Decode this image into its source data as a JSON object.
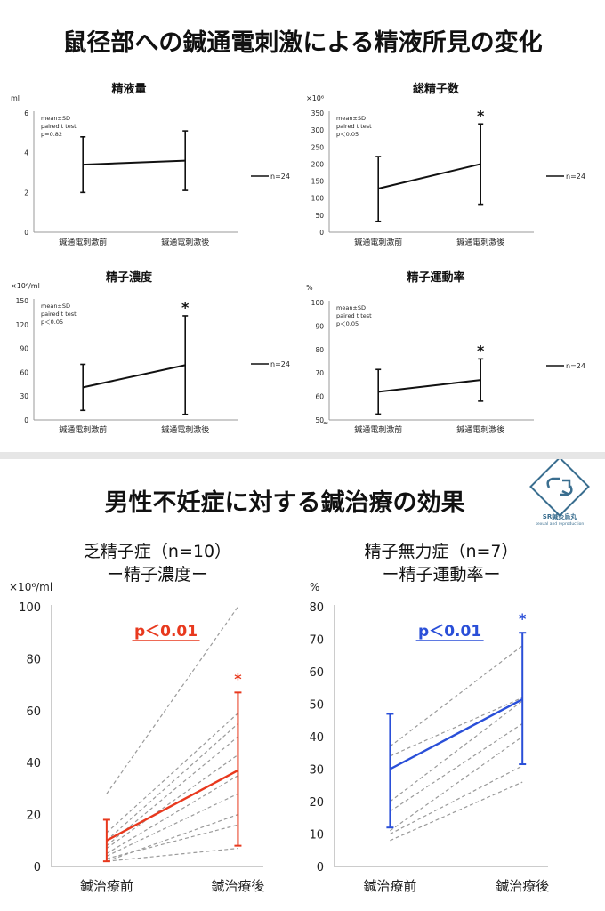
{
  "top_title": "鼠径部への鍼通電刺激による精液所見の変化",
  "bottom_title": "男性不妊症に対する鍼治療の効果",
  "logo": {
    "name": "SR鍼灸烏丸",
    "sub": "sexual and reproduction"
  },
  "chart_data": [
    {
      "id": "volume",
      "type": "line",
      "title": "精液量",
      "unit_label": "ml",
      "categories": [
        "鍼通電刺激前",
        "鍼通電刺激後"
      ],
      "mean": [
        3.4,
        3.6
      ],
      "sd_upper": [
        4.8,
        5.1
      ],
      "sd_lower": [
        2.0,
        2.1
      ],
      "ylim": [
        0,
        6
      ],
      "yticks": [
        0,
        2,
        4,
        6
      ],
      "note": [
        "mean±SD",
        "paired t test",
        "p=0.82"
      ],
      "star": "",
      "legend": "n=24",
      "break_mark": ""
    },
    {
      "id": "total",
      "type": "line",
      "title": "総精子数",
      "unit_label": "×10⁶",
      "categories": [
        "鍼通電刺激前",
        "鍼通電刺激後"
      ],
      "mean": [
        128,
        200
      ],
      "sd_upper": [
        222,
        318
      ],
      "sd_lower": [
        32,
        82
      ],
      "ylim": [
        0,
        350
      ],
      "yticks": [
        0,
        50,
        100,
        150,
        200,
        250,
        300,
        350
      ],
      "note": [
        "mean±SD",
        "paired t test",
        "p＜0.05"
      ],
      "star": "*",
      "legend": "n=24",
      "break_mark": ""
    },
    {
      "id": "conc",
      "type": "line",
      "title": "精子濃度",
      "unit_label": "×10⁶/ml",
      "categories": [
        "鍼通電刺激前",
        "鍼通電刺激後"
      ],
      "mean": [
        41,
        69
      ],
      "sd_upper": [
        70,
        131
      ],
      "sd_lower": [
        12,
        7
      ],
      "ylim": [
        0,
        150
      ],
      "yticks": [
        0,
        30,
        60,
        90,
        120,
        150
      ],
      "note": [
        "mean±SD",
        "paired t test",
        "p＜0.05"
      ],
      "star": "*",
      "legend": "n=24",
      "break_mark": ""
    },
    {
      "id": "motility",
      "type": "line",
      "title": "精子運動率",
      "unit_label": "%",
      "categories": [
        "鍼通電刺激前",
        "鍼通電刺激後"
      ],
      "mean": [
        62,
        67
      ],
      "sd_upper": [
        71.5,
        76
      ],
      "sd_lower": [
        52.5,
        58
      ],
      "ylim": [
        50,
        100
      ],
      "yticks": [
        50,
        60,
        70,
        80,
        90,
        100
      ],
      "note": [
        "mean±SD",
        "paired t test",
        "p＜0.05"
      ],
      "star": "*",
      "legend": "n=24",
      "break_mark": "≈"
    },
    {
      "id": "oligo",
      "type": "line",
      "title_lines": [
        "乏精子症（n=10）",
        "ー精子濃度ー"
      ],
      "unit_label": "×10⁶/ml",
      "categories": [
        "鍼治療前",
        "鍼治療後"
      ],
      "color": "#e8391e",
      "pvalue": "p＜0.01",
      "star": "*",
      "mean": [
        10,
        37
      ],
      "sd_upper": [
        18,
        67
      ],
      "sd_lower": [
        2,
        8
      ],
      "ylim": [
        0,
        100
      ],
      "yticks": [
        0,
        20,
        40,
        60,
        80,
        100
      ],
      "individuals": [
        [
          28,
          100
        ],
        [
          13,
          59
        ],
        [
          10,
          55
        ],
        [
          8,
          50
        ],
        [
          7,
          43
        ],
        [
          5,
          35
        ],
        [
          4,
          28
        ],
        [
          2,
          20
        ],
        [
          3,
          16
        ],
        [
          2,
          7
        ]
      ]
    },
    {
      "id": "astheno",
      "type": "line",
      "title_lines": [
        "精子無力症（n=7）",
        "ー精子運動率ー"
      ],
      "unit_label": "%",
      "categories": [
        "鍼治療前",
        "鍼治療後"
      ],
      "color": "#2a4fd8",
      "pvalue": "p＜0.01",
      "star": "*",
      "mean": [
        30,
        51.5
      ],
      "sd_upper": [
        47,
        72
      ],
      "sd_lower": [
        12,
        31.5
      ],
      "ylim": [
        0,
        80
      ],
      "yticks": [
        0,
        10,
        20,
        30,
        40,
        50,
        60,
        70,
        80
      ],
      "individuals": [
        [
          37,
          68
        ],
        [
          34,
          52
        ],
        [
          20,
          51
        ],
        [
          17,
          44
        ],
        [
          11,
          40
        ],
        [
          10,
          31
        ],
        [
          8,
          26
        ]
      ]
    }
  ]
}
